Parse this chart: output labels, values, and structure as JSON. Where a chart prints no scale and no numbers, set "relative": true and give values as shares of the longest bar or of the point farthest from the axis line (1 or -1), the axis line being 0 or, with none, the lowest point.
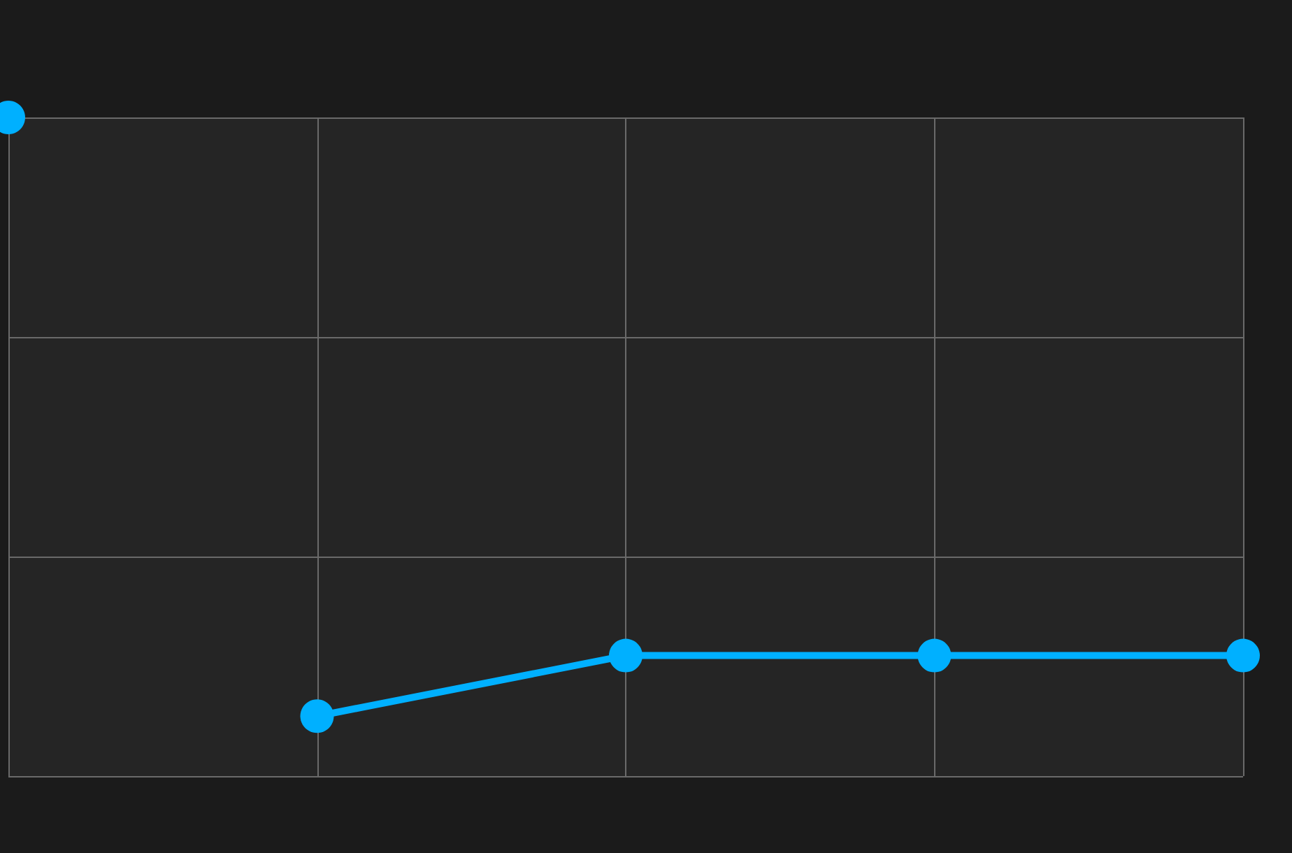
{
  "chart_data": {
    "type": "line",
    "relative": true,
    "categories": [
      null,
      null,
      null,
      null,
      null
    ],
    "series": [
      {
        "color": "#00b0ff",
        "values": [
          1,
          null,
          null,
          null,
          null
        ]
      },
      {
        "color": "#00b0ff",
        "values": [
          null,
          0.091,
          0.183,
          0.183,
          0.183
        ]
      }
    ],
    "grid": true,
    "marker": "circle",
    "line_style": "solid"
  }
}
